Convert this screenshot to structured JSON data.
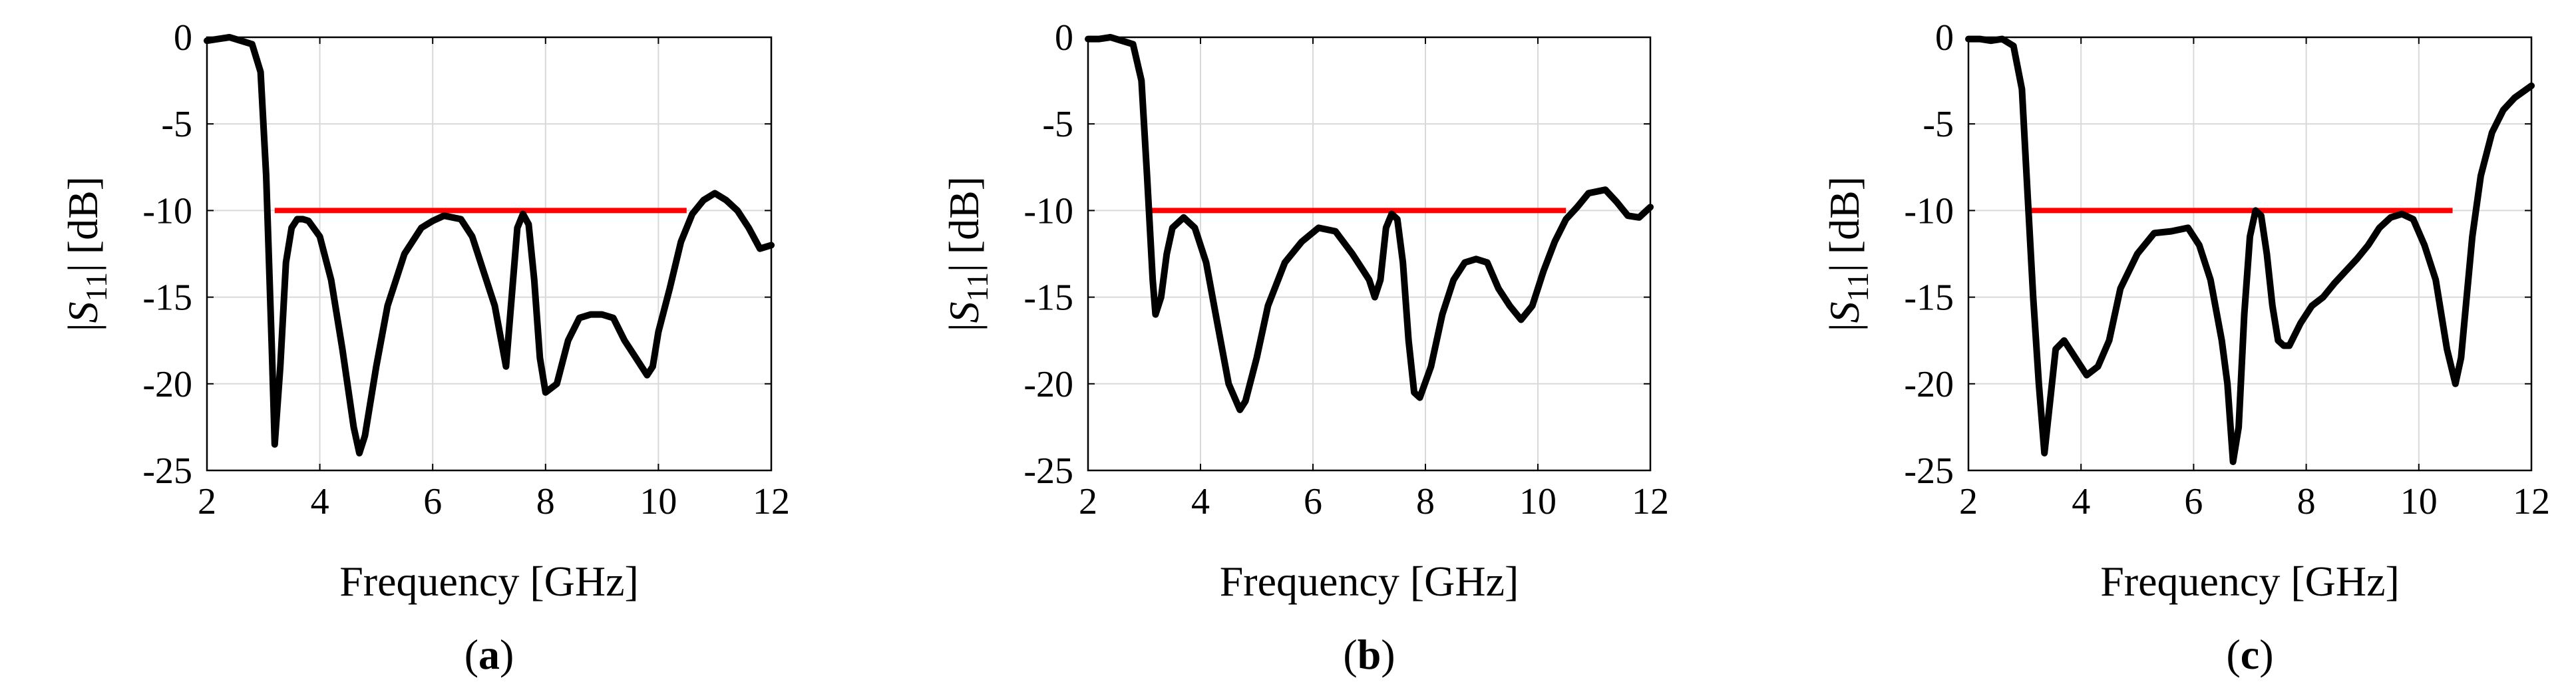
{
  "figure": {
    "colors": {
      "series": "#000000",
      "threshold": "#ff0000",
      "grid": "#d9d9d9",
      "axes": "#000000"
    }
  },
  "chart_data": [
    {
      "id": "a",
      "type": "line",
      "panel_label": "a",
      "paren_open": "(",
      "paren_close": ")",
      "xlabel": "Frequency [GHz]",
      "ylabel": {
        "bar_left": "|",
        "symbol": "S",
        "subscript": "11",
        "bar_right": "|",
        "unit": "[dB]"
      },
      "xlim": [
        2,
        12
      ],
      "ylim": [
        -25,
        0
      ],
      "xticks": [
        2,
        4,
        6,
        8,
        10,
        12
      ],
      "yticks": [
        0,
        -5,
        -10,
        -15,
        -20,
        -25
      ],
      "grid": true,
      "threshold": {
        "value": -10,
        "x_start": 3.2,
        "x_end": 10.5
      },
      "series": [
        {
          "name": "S11",
          "x": [
            2.0,
            2.2,
            2.4,
            2.6,
            2.8,
            2.95,
            3.05,
            3.15,
            3.2,
            3.3,
            3.4,
            3.5,
            3.6,
            3.7,
            3.8,
            4.0,
            4.2,
            4.4,
            4.6,
            4.7,
            4.8,
            5.0,
            5.2,
            5.5,
            5.8,
            6.0,
            6.2,
            6.5,
            6.7,
            6.9,
            7.1,
            7.3,
            7.4,
            7.5,
            7.6,
            7.7,
            7.8,
            7.9,
            8.0,
            8.2,
            8.4,
            8.6,
            8.8,
            9.0,
            9.2,
            9.4,
            9.6,
            9.8,
            9.9,
            10.0,
            10.2,
            10.4,
            10.6,
            10.8,
            11.0,
            11.2,
            11.4,
            11.6,
            11.8,
            12.0
          ],
          "values": [
            -0.2,
            -0.1,
            0.0,
            -0.2,
            -0.4,
            -2.0,
            -8.0,
            -18.0,
            -23.5,
            -19.0,
            -13.0,
            -11.0,
            -10.5,
            -10.5,
            -10.6,
            -11.5,
            -14.0,
            -18.0,
            -22.5,
            -24.0,
            -23.0,
            -19.0,
            -15.5,
            -12.5,
            -11.0,
            -10.6,
            -10.3,
            -10.5,
            -11.5,
            -13.5,
            -15.5,
            -19.0,
            -15.0,
            -11.0,
            -10.2,
            -10.8,
            -14.0,
            -18.5,
            -20.5,
            -20.0,
            -17.5,
            -16.2,
            -16.0,
            -16.0,
            -16.2,
            -17.5,
            -18.5,
            -19.5,
            -19.0,
            -17.0,
            -14.5,
            -11.8,
            -10.2,
            -9.4,
            -9.0,
            -9.4,
            -10.0,
            -11.0,
            -12.2,
            -12.0
          ]
        }
      ]
    },
    {
      "id": "b",
      "type": "line",
      "panel_label": "b",
      "paren_open": "(",
      "paren_close": ")",
      "xlabel": "Frequency [GHz]",
      "ylabel": {
        "bar_left": "|",
        "symbol": "S",
        "subscript": "11",
        "bar_right": "|",
        "unit": "[dB]"
      },
      "xlim": [
        2,
        12
      ],
      "ylim": [
        -25,
        0
      ],
      "xticks": [
        2,
        4,
        6,
        8,
        10,
        12
      ],
      "yticks": [
        0,
        -5,
        -10,
        -15,
        -20,
        -25
      ],
      "grid": true,
      "threshold": {
        "value": -10,
        "x_start": 3.1,
        "x_end": 10.5
      },
      "series": [
        {
          "name": "S11",
          "x": [
            2.0,
            2.2,
            2.4,
            2.6,
            2.8,
            2.95,
            3.05,
            3.15,
            3.2,
            3.3,
            3.4,
            3.5,
            3.7,
            3.9,
            4.1,
            4.3,
            4.5,
            4.7,
            4.8,
            5.0,
            5.2,
            5.5,
            5.8,
            6.1,
            6.4,
            6.7,
            6.9,
            7.0,
            7.1,
            7.2,
            7.3,
            7.4,
            7.5,
            7.6,
            7.7,
            7.8,
            7.9,
            8.1,
            8.3,
            8.5,
            8.7,
            8.9,
            9.1,
            9.3,
            9.5,
            9.7,
            9.9,
            10.1,
            10.3,
            10.5,
            10.7,
            10.9,
            11.2,
            11.4,
            11.6,
            11.8,
            12.0
          ],
          "values": [
            -0.1,
            -0.1,
            0.0,
            -0.2,
            -0.4,
            -2.5,
            -8.0,
            -14.0,
            -16.0,
            -15.0,
            -12.5,
            -11.0,
            -10.4,
            -11.0,
            -13.0,
            -16.5,
            -20.0,
            -21.5,
            -21.0,
            -18.5,
            -15.5,
            -13.0,
            -11.8,
            -11.0,
            -11.2,
            -12.5,
            -13.5,
            -14.0,
            -15.0,
            -14.0,
            -11.0,
            -10.2,
            -10.5,
            -13.0,
            -17.5,
            -20.5,
            -20.8,
            -19.0,
            -16.0,
            -14.0,
            -13.0,
            -12.8,
            -13.0,
            -14.5,
            -15.5,
            -16.3,
            -15.5,
            -13.5,
            -11.8,
            -10.5,
            -9.8,
            -9.0,
            -8.8,
            -9.5,
            -10.3,
            -10.4,
            -9.8
          ]
        }
      ]
    },
    {
      "id": "c",
      "type": "line",
      "panel_label": "c",
      "paren_open": "(",
      "paren_close": ")",
      "xlabel": "Frequency [GHz]",
      "ylabel": {
        "bar_left": "|",
        "symbol": "S",
        "subscript": "11",
        "bar_right": "|",
        "unit": "[dB]"
      },
      "xlim": [
        2,
        12
      ],
      "ylim": [
        -25,
        0
      ],
      "xticks": [
        2,
        4,
        6,
        8,
        10,
        12
      ],
      "yticks": [
        0,
        -5,
        -10,
        -15,
        -20,
        -25
      ],
      "grid": true,
      "threshold": {
        "value": -10,
        "x_start": 3.1,
        "x_end": 10.6
      },
      "series": [
        {
          "name": "S11",
          "x": [
            2.0,
            2.2,
            2.4,
            2.6,
            2.8,
            2.95,
            3.05,
            3.15,
            3.25,
            3.35,
            3.45,
            3.55,
            3.7,
            3.9,
            4.1,
            4.3,
            4.5,
            4.7,
            5.0,
            5.3,
            5.6,
            5.9,
            6.1,
            6.3,
            6.5,
            6.6,
            6.7,
            6.8,
            6.9,
            7.0,
            7.1,
            7.2,
            7.3,
            7.4,
            7.5,
            7.6,
            7.7,
            7.9,
            8.1,
            8.3,
            8.5,
            8.7,
            8.9,
            9.1,
            9.3,
            9.5,
            9.7,
            9.9,
            10.1,
            10.3,
            10.5,
            10.65,
            10.75,
            10.85,
            10.95,
            11.1,
            11.3,
            11.5,
            11.7,
            12.0
          ],
          "values": [
            -0.1,
            -0.1,
            -0.2,
            -0.1,
            -0.5,
            -3.0,
            -9.0,
            -15.0,
            -20.0,
            -24.0,
            -21.0,
            -18.0,
            -17.5,
            -18.5,
            -19.5,
            -19.0,
            -17.5,
            -14.5,
            -12.5,
            -11.3,
            -11.2,
            -11.0,
            -12.0,
            -14.0,
            -17.5,
            -20.0,
            -24.5,
            -22.5,
            -16.0,
            -11.5,
            -10.0,
            -10.3,
            -12.5,
            -15.5,
            -17.5,
            -17.8,
            -17.8,
            -16.5,
            -15.5,
            -15.0,
            -14.2,
            -13.5,
            -12.8,
            -12.0,
            -11.0,
            -10.4,
            -10.2,
            -10.5,
            -12.0,
            -14.0,
            -18.0,
            -20.0,
            -18.5,
            -15.0,
            -11.5,
            -8.0,
            -5.5,
            -4.2,
            -3.5,
            -2.8
          ]
        }
      ]
    }
  ]
}
